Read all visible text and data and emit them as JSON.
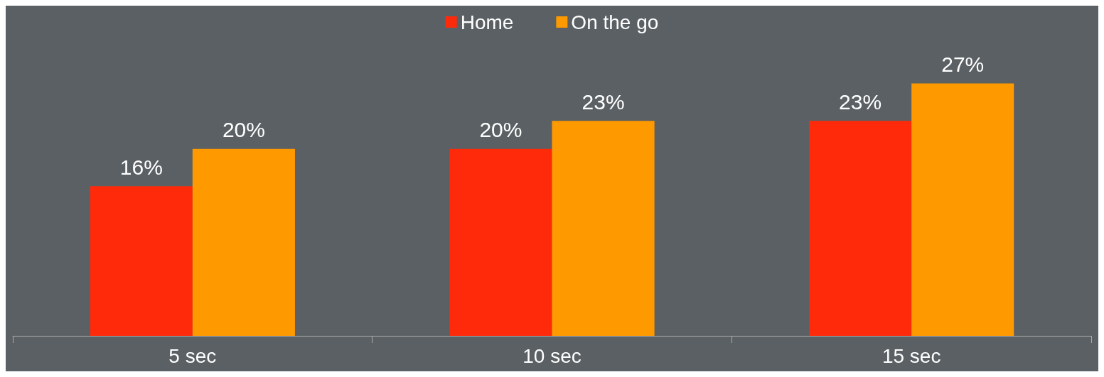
{
  "chart_data": {
    "type": "bar",
    "categories": [
      "5 sec",
      "10 sec",
      "15 sec"
    ],
    "series": [
      {
        "name": "Home",
        "color": "#ff2a0a",
        "values": [
          16,
          20,
          23
        ],
        "value_labels": [
          "16%",
          "20%",
          "23%"
        ]
      },
      {
        "name": "On the go",
        "color": "#ff9900",
        "values": [
          20,
          23,
          27
        ],
        "value_labels": [
          "20%",
          "23%",
          "27%"
        ]
      }
    ],
    "grid": false,
    "legend": "top"
  }
}
